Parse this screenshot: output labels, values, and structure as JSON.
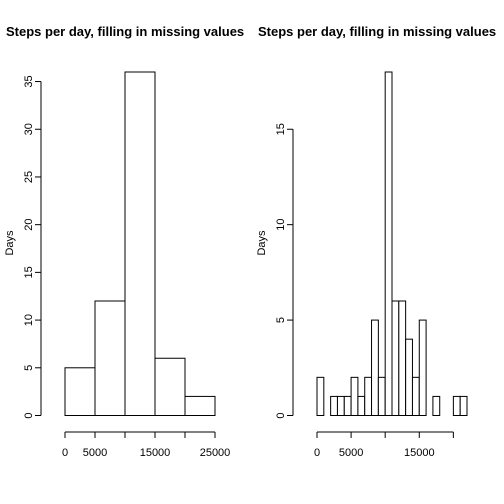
{
  "chart_data": [
    {
      "type": "bar",
      "title": "Steps per day, filling in missing values",
      "xlabel": "",
      "ylabel": "Days",
      "bin_edges": [
        0,
        5000,
        10000,
        15000,
        20000,
        25000
      ],
      "values": [
        5,
        12,
        36,
        6,
        2
      ],
      "xlim": [
        0,
        25000
      ],
      "ylim": [
        0,
        36
      ],
      "x_ticks": [
        0,
        5000,
        10000,
        15000,
        20000,
        25000
      ],
      "x_tick_labels": [
        "0",
        "5000",
        "",
        "15000",
        "",
        "25000"
      ],
      "y_ticks": [
        0,
        5,
        10,
        15,
        20,
        25,
        30,
        35
      ],
      "y_tick_labels": [
        "0",
        "5",
        "10",
        "15",
        "20",
        "25",
        "30",
        "35"
      ],
      "grid": false
    },
    {
      "type": "bar",
      "title": "Steps per day, filling in missing values",
      "xlabel": "",
      "ylabel": "Days",
      "bin_edges": [
        0,
        1000,
        2000,
        3000,
        4000,
        5000,
        6000,
        7000,
        8000,
        9000,
        10000,
        11000,
        12000,
        13000,
        14000,
        15000,
        16000,
        17000,
        18000,
        19000,
        20000,
        21000,
        22000
      ],
      "values": [
        2,
        0,
        1,
        1,
        1,
        2,
        1,
        2,
        5,
        2,
        18,
        6,
        6,
        4,
        2,
        5,
        0,
        1,
        0,
        0,
        1,
        1
      ],
      "xlim": [
        0,
        22000
      ],
      "ylim": [
        0,
        18
      ],
      "x_ticks": [
        0,
        5000,
        10000,
        15000,
        20000
      ],
      "x_tick_labels": [
        "0",
        "5000",
        "",
        "15000",
        ""
      ],
      "y_ticks": [
        0,
        5,
        10,
        15
      ],
      "y_tick_labels": [
        "0",
        "5",
        "10",
        "15"
      ],
      "grid": false
    }
  ]
}
